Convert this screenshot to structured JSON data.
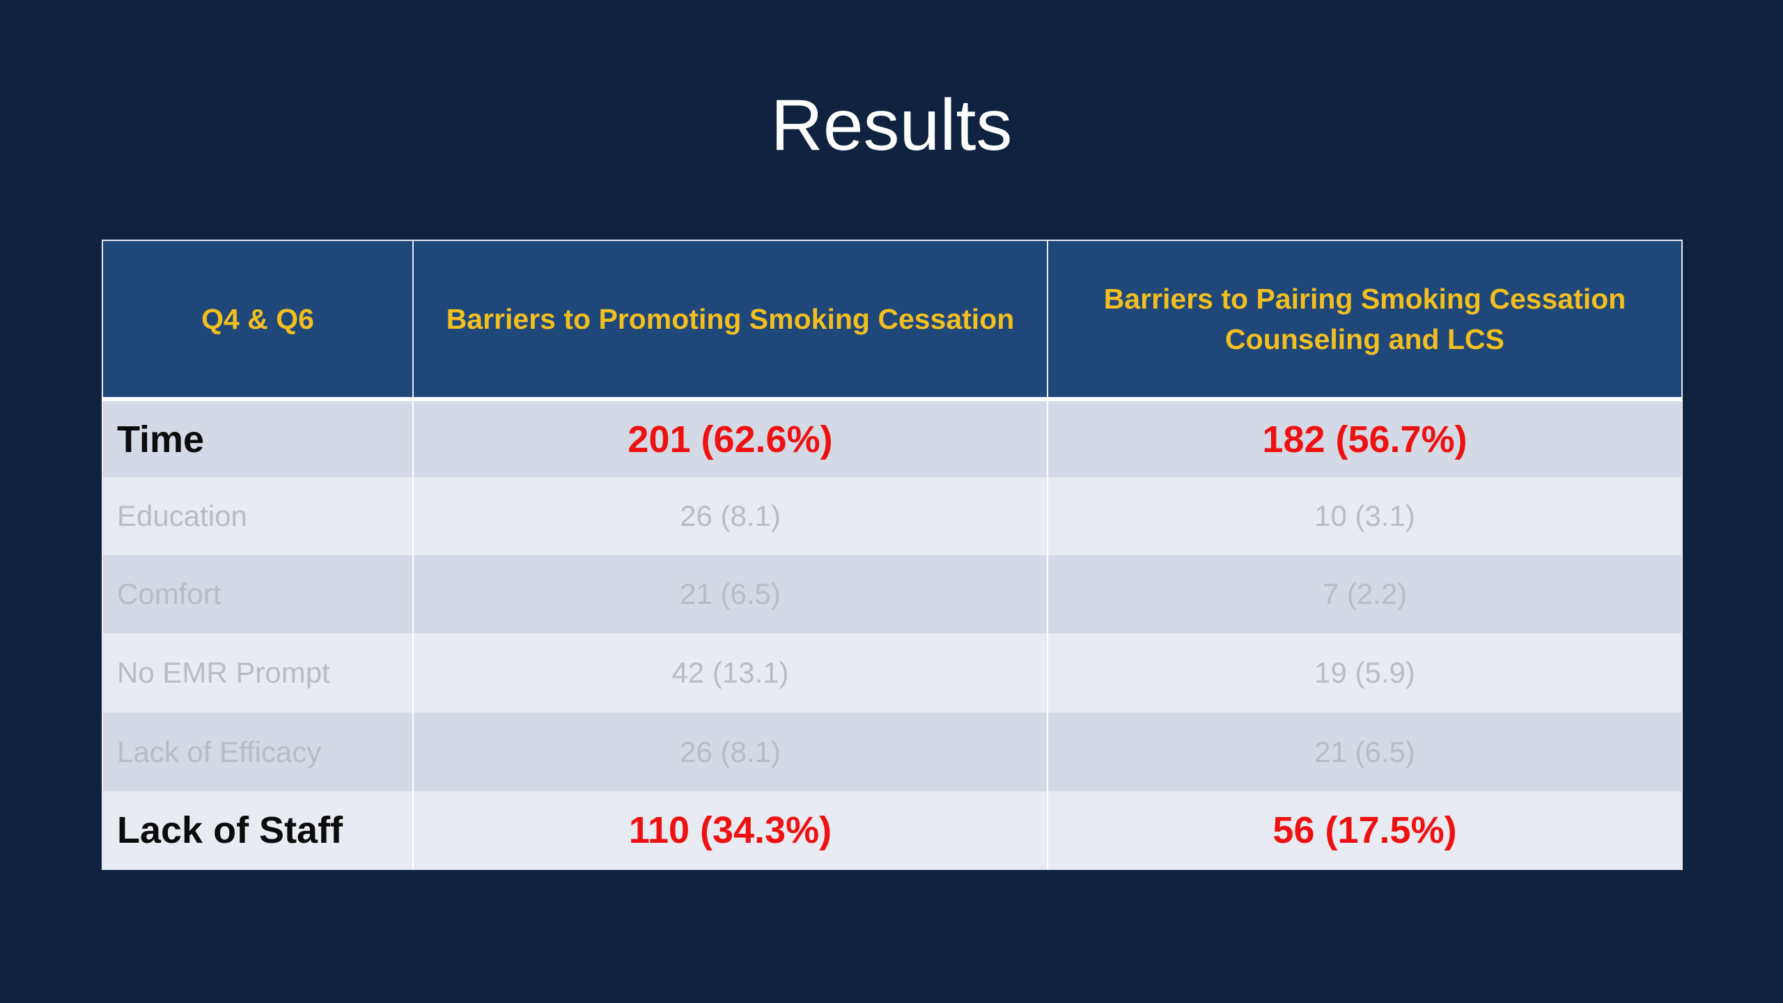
{
  "slide": {
    "title": "Results"
  },
  "table": {
    "headers": [
      "Q4 & Q6",
      "Barriers to Promoting Smoking Cessation",
      "Barriers to Pairing Smoking Cessation Counseling and LCS"
    ],
    "rows": [
      {
        "label": "Time",
        "promoting": "201 (62.6%)",
        "pairing": "182 (56.7%)",
        "emphasis": true
      },
      {
        "label": "Education",
        "promoting": "26 (8.1)",
        "pairing": "10 (3.1)",
        "emphasis": false
      },
      {
        "label": "Comfort",
        "promoting": "21 (6.5)",
        "pairing": "7 (2.2)",
        "emphasis": false
      },
      {
        "label": "No EMR Prompt",
        "promoting": "42 (13.1)",
        "pairing": "19 (5.9)",
        "emphasis": false
      },
      {
        "label": "Lack of Efficacy",
        "promoting": "26 (8.1)",
        "pairing": "21 (6.5)",
        "emphasis": false
      },
      {
        "label": "Lack of Staff",
        "promoting": "110 (34.3%)",
        "pairing": "56 (17.5%)",
        "emphasis": true
      }
    ]
  },
  "colors": {
    "background": "#0f2240",
    "header_fill": "#1f477a",
    "header_text": "#f2bf1f",
    "highlight_value": "#ee1111",
    "muted_text": "#b9bcc4",
    "row_dark": "#d4d9e6",
    "row_light": "#e8ebf2"
  }
}
